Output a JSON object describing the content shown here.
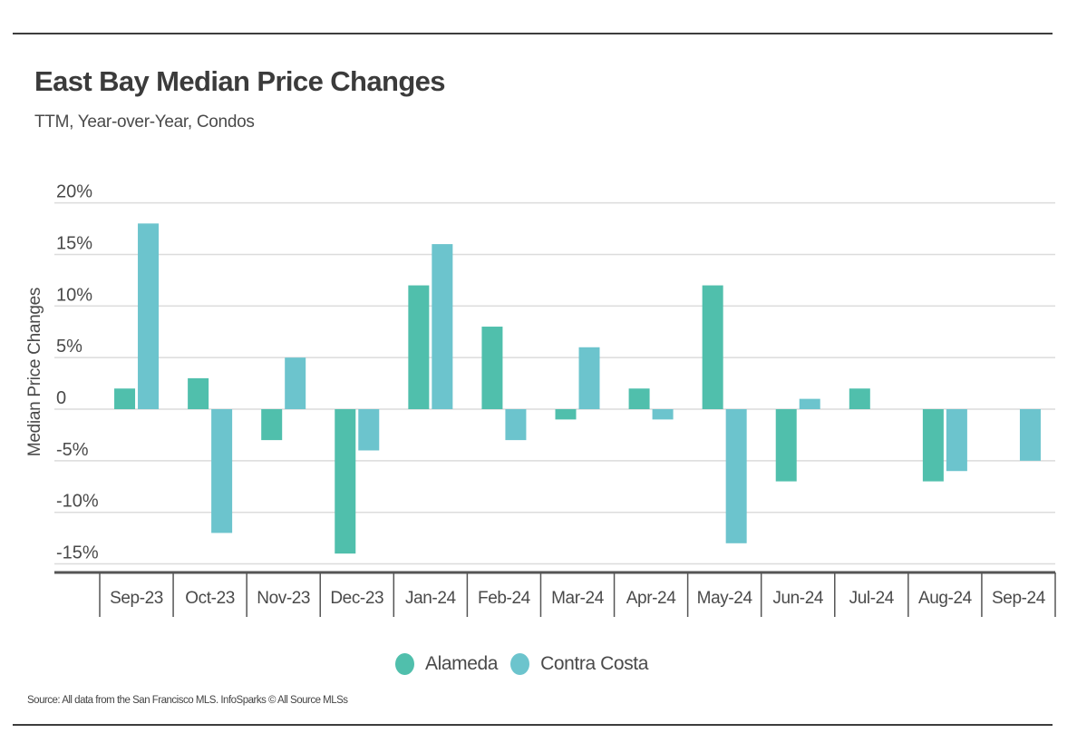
{
  "header": {
    "title": "East Bay Median Price Changes",
    "subtitle": "TTM, Year-over-Year, Condos"
  },
  "footer": {
    "source": "Source:  All data from the San Francisco MLS. InfoSparks © All Source MLSs"
  },
  "colors": {
    "Alameda": "#50bfac",
    "Contra Costa": "#6cc4cd",
    "grid": "#dcdcdc",
    "axis": "#555555",
    "rule": "#3d3d3d"
  },
  "chart_data": {
    "type": "bar",
    "title": "East Bay Median Price Changes",
    "subtitle": "TTM, Year-over-Year, Condos",
    "xlabel": "",
    "ylabel": "Median Price Changes",
    "ylim": [
      -15,
      20
    ],
    "yticks": [
      20,
      15,
      10,
      5,
      0,
      -5,
      -10,
      -15
    ],
    "ytick_labels": [
      "20%",
      "15%",
      "10%",
      "5%",
      "0",
      "-5%",
      "-10%",
      "-15%"
    ],
    "grid": true,
    "legend_position": "bottom-center",
    "categories": [
      "Sep-23",
      "Oct-23",
      "Nov-23",
      "Dec-23",
      "Jan-24",
      "Feb-24",
      "Mar-24",
      "Apr-24",
      "May-24",
      "Jun-24",
      "Jul-24",
      "Aug-24",
      "Sep-24"
    ],
    "series": [
      {
        "name": "Alameda",
        "values": [
          2,
          3,
          -3,
          -14,
          12,
          8,
          -1,
          2,
          12,
          -7,
          2,
          -7,
          0
        ]
      },
      {
        "name": "Contra Costa",
        "values": [
          18,
          -12,
          5,
          -4,
          16,
          -3,
          6,
          -1,
          -13,
          1,
          0,
          -6,
          -5
        ]
      }
    ]
  }
}
